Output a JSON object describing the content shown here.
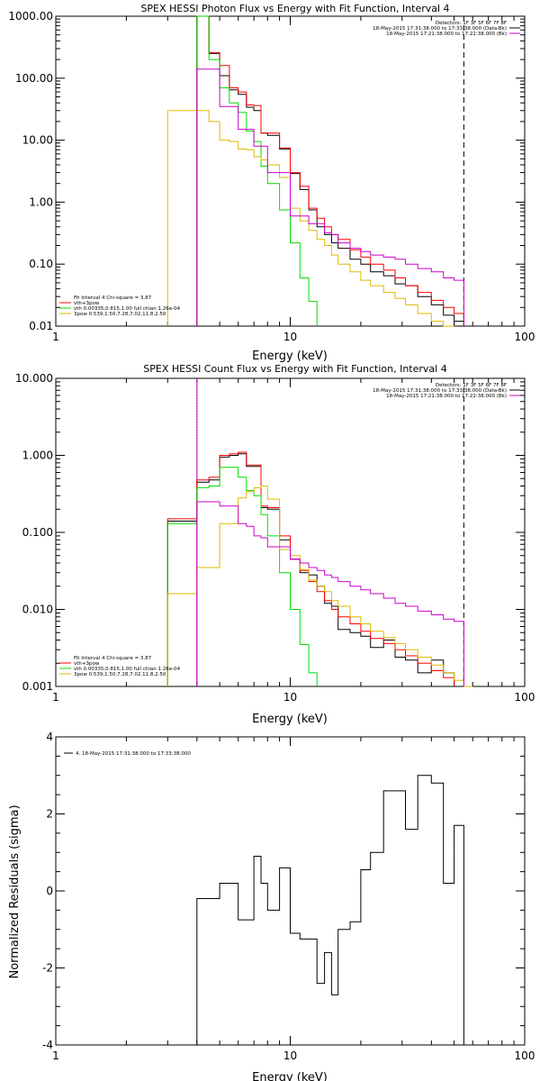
{
  "chart_data": [
    {
      "type": "line",
      "title": "SPEX HESSI Photon Flux vs Energy with Fit Function, Interval 4",
      "xlabel": "Energy (keV)",
      "ylabel": "",
      "xscale": "log",
      "yscale": "log",
      "xlim": [
        1,
        100
      ],
      "ylim": [
        0.01,
        1000
      ],
      "yticks": [
        0.01,
        0.1,
        1,
        10,
        100,
        1000
      ],
      "ytick_labels": [
        "0.01",
        "0.10",
        "1.00",
        "10.00",
        "100.00",
        "1000.00"
      ],
      "xticks": [
        1,
        10,
        100
      ],
      "xtick_labels": [
        "1",
        "10",
        "100"
      ],
      "vlines": [
        {
          "x": 4.0,
          "style": "solid",
          "color": "#cc00cc"
        },
        {
          "x": 55.0,
          "style": "dashed",
          "color": "#000000"
        }
      ],
      "legend_top_right": [
        {
          "text": "Detectors: 1F 3F 5F 6F 7F 8F",
          "color": ""
        },
        {
          "text": "18-May-2015 17:31:38.000 to 17:33:38.000 (Data-Bk)",
          "color": "#000000"
        },
        {
          "text": "18-May-2015 17:21:38.000 to 17:22:38.000 (Bk)",
          "color": "#cc00cc"
        }
      ],
      "legend_bottom_left": [
        {
          "text": "Fit Interval 4   Chi-square = 3.87",
          "color": ""
        },
        {
          "text": "vth+3pow",
          "color": "#ff0000"
        },
        {
          "text": "vth 0.00335,0.815,1.00  full chian 1.26e-04",
          "color": "#00dd00"
        },
        {
          "text": "3pow 0.539,1.50,7.28,7.02,11.8,2.50",
          "color": "#ddbb00"
        }
      ],
      "series": [
        {
          "color": "#000000",
          "edges": [
            4.0,
            4.5,
            5.0,
            5.5,
            6.0,
            6.5,
            7.0,
            7.5,
            8.0,
            9.0,
            10.0,
            11.0,
            12.0,
            13.0,
            14.0,
            15.0,
            16.0,
            18.0,
            20.0,
            22.0,
            25.0,
            28.0,
            31.0,
            35.0,
            40.0,
            45.0,
            50.0,
            55.0
          ],
          "values": [
            1000,
            250,
            110,
            65,
            55,
            34,
            30,
            13,
            12,
            7.2,
            2.9,
            1.6,
            0.75,
            0.4,
            0.3,
            0.22,
            0.18,
            0.12,
            0.1,
            0.075,
            0.065,
            0.048,
            0.045,
            0.03,
            0.022,
            0.015,
            0.012
          ]
        },
        {
          "color": "#ff0000",
          "edges": [
            4.0,
            4.5,
            5.0,
            5.5,
            6.0,
            6.5,
            7.0,
            7.5,
            8.0,
            9.0,
            10.0,
            11.0,
            12.0,
            13.0,
            14.0,
            15.0,
            16.0,
            18.0,
            20.0,
            22.0,
            25.0,
            28.0,
            31.0,
            35.0,
            40.0,
            45.0,
            50.0,
            55.0
          ],
          "values": [
            1000,
            260,
            160,
            70,
            60,
            37,
            36,
            13,
            13,
            7.5,
            3.0,
            1.8,
            0.8,
            0.55,
            0.4,
            0.3,
            0.25,
            0.17,
            0.13,
            0.1,
            0.08,
            0.06,
            0.045,
            0.035,
            0.026,
            0.02,
            0.016
          ]
        },
        {
          "color": "#00dd00",
          "edges": [
            4.0,
            4.5,
            5.0,
            5.5,
            6.0,
            6.5,
            7.0,
            7.5,
            8.0,
            9.0,
            10.0,
            11.0,
            12.0,
            13.0
          ],
          "values": [
            1000,
            200,
            70,
            40,
            28,
            14,
            9.5,
            3.8,
            2.0,
            0.75,
            0.22,
            0.06,
            0.025
          ]
        },
        {
          "color": "#ddbb00",
          "edges": [
            3.0,
            4.0,
            4.5,
            5.0,
            5.5,
            6.0,
            6.5,
            7.0,
            7.5,
            8.0,
            9.0,
            10.0,
            11.0,
            12.0,
            13.0,
            14.0,
            15.0,
            16.0,
            18.0,
            20.0,
            22.0,
            25.0,
            28.0,
            31.0,
            35.0,
            40.0,
            45.0,
            50.0
          ],
          "values": [
            30,
            30,
            20,
            10,
            9.5,
            7.2,
            7.0,
            5.4,
            4.8,
            4.0,
            2.5,
            0.8,
            0.5,
            0.35,
            0.25,
            0.2,
            0.14,
            0.1,
            0.075,
            0.055,
            0.045,
            0.035,
            0.028,
            0.022,
            0.016,
            0.012,
            0.01
          ]
        },
        {
          "color": "#cc00cc",
          "edges": [
            4.0,
            4.5,
            5.0,
            5.5,
            6.0,
            6.5,
            7.0,
            7.5,
            8.0,
            9.0,
            10.0,
            11.0,
            12.0,
            13.0,
            14.0,
            15.0,
            16.0,
            18.0,
            20.0,
            22.0,
            25.0,
            28.0,
            31.0,
            35.0,
            40.0,
            45.0,
            50.0,
            55.0
          ],
          "values": [
            140,
            140,
            35,
            35,
            15,
            15,
            8,
            8,
            3,
            3,
            0.6,
            0.6,
            0.45,
            0.45,
            0.32,
            0.3,
            0.22,
            0.18,
            0.16,
            0.14,
            0.13,
            0.12,
            0.1,
            0.085,
            0.075,
            0.06,
            0.055
          ]
        }
      ]
    },
    {
      "type": "line",
      "title": "SPEX HESSI Count Flux vs Energy with Fit Function, Interval 4",
      "xlabel": "Energy (keV)",
      "ylabel": "",
      "xscale": "log",
      "yscale": "log",
      "xlim": [
        1,
        100
      ],
      "ylim": [
        0.001,
        10
      ],
      "yticks": [
        0.001,
        0.01,
        0.1,
        1,
        10
      ],
      "ytick_labels": [
        "0.001",
        "0.010",
        "0.100",
        "1.000",
        "10.000"
      ],
      "xticks": [
        1,
        10,
        100
      ],
      "xtick_labels": [
        "1",
        "10",
        "100"
      ],
      "vlines": [
        {
          "x": 4.0,
          "style": "dotted",
          "color": "#000000"
        },
        {
          "x": 4.0,
          "style": "solid",
          "color": "#cc00cc"
        },
        {
          "x": 55.0,
          "style": "dashed",
          "color": "#000000"
        }
      ],
      "legend_top_right": [
        {
          "text": "Detectors: 1F 3F 5F 6F 7F 8F",
          "color": ""
        },
        {
          "text": "18-May-2015 17:31:38.000 to 17:33:38.000 (Data-Bk)",
          "color": "#000000"
        },
        {
          "text": "18-May-2015 17:21:38.000 to 17:22:38.000 (Bk)",
          "color": "#cc00cc"
        }
      ],
      "legend_bottom_left": [
        {
          "text": "Fit Interval 4   Chi-square = 3.87",
          "color": ""
        },
        {
          "text": "vth+3pow",
          "color": "#ff0000"
        },
        {
          "text": "vth 0.00335,0.815,1.00  full chian 1.26e-04",
          "color": "#00dd00"
        },
        {
          "text": "3pow 0.539,1.50,7.28,7.02,11.8,2.50",
          "color": "#ddbb00"
        }
      ],
      "series": [
        {
          "color": "#000000",
          "edges": [
            3.0,
            4.0,
            4.5,
            5.0,
            5.5,
            6.0,
            6.5,
            7.0,
            7.5,
            8.0,
            9.0,
            10.0,
            11.0,
            12.0,
            13.0,
            14.0,
            15.0,
            16.0,
            18.0,
            20.0,
            22.0,
            25.0,
            28.0,
            31.0,
            35.0,
            40.0,
            45.0,
            50.0,
            55.0
          ],
          "values": [
            0.14,
            0.45,
            0.48,
            0.95,
            1.0,
            1.05,
            0.72,
            0.72,
            0.21,
            0.2,
            0.08,
            0.045,
            0.03,
            0.028,
            0.02,
            0.012,
            0.011,
            0.0055,
            0.005,
            0.0045,
            0.0032,
            0.004,
            0.0024,
            0.0022,
            0.0015,
            0.0022,
            0.0015,
            0.001
          ]
        },
        {
          "color": "#ff0000",
          "edges": [
            3.0,
            4.0,
            4.5,
            5.0,
            5.5,
            6.0,
            6.5,
            7.0,
            7.5,
            8.0,
            9.0,
            10.0,
            11.0,
            12.0,
            13.0,
            14.0,
            15.0,
            16.0,
            18.0,
            20.0,
            22.0,
            25.0,
            28.0,
            31.0,
            35.0,
            40.0,
            45.0,
            50.0
          ],
          "values": [
            0.15,
            0.48,
            0.52,
            1.0,
            1.05,
            1.1,
            0.75,
            0.75,
            0.22,
            0.21,
            0.09,
            0.045,
            0.032,
            0.023,
            0.017,
            0.013,
            0.01,
            0.008,
            0.0065,
            0.0052,
            0.0042,
            0.0036,
            0.003,
            0.0025,
            0.002,
            0.0016,
            0.0013
          ]
        },
        {
          "color": "#00dd00",
          "edges": [
            3.0,
            4.0,
            4.5,
            5.0,
            5.5,
            6.0,
            6.5,
            7.0,
            7.5,
            8.0,
            9.0,
            10.0,
            11.0,
            12.0,
            13.0
          ],
          "values": [
            0.13,
            0.38,
            0.4,
            0.7,
            0.7,
            0.52,
            0.35,
            0.3,
            0.17,
            0.09,
            0.03,
            0.01,
            0.0035,
            0.0015
          ]
        },
        {
          "color": "#ddbb00",
          "edges": [
            3.0,
            4.0,
            4.5,
            5.0,
            5.5,
            6.0,
            6.5,
            7.0,
            7.5,
            8.0,
            9.0,
            10.0,
            11.0,
            12.0,
            13.0,
            14.0,
            15.0,
            16.0,
            18.0,
            20.0,
            22.0,
            25.0,
            28.0,
            31.0,
            35.0,
            40.0,
            45.0,
            50.0,
            55.0,
            60.0
          ],
          "values": [
            0.016,
            0.035,
            0.035,
            0.13,
            0.13,
            0.28,
            0.34,
            0.38,
            0.4,
            0.27,
            0.06,
            0.05,
            0.033,
            0.024,
            0.02,
            0.017,
            0.013,
            0.011,
            0.008,
            0.0065,
            0.0052,
            0.0043,
            0.0036,
            0.003,
            0.0024,
            0.0019,
            0.0015,
            0.0012,
            0.001
          ]
        },
        {
          "color": "#cc00cc",
          "edges": [
            4.0,
            4.5,
            5.0,
            5.5,
            6.0,
            6.5,
            7.0,
            7.5,
            8.0,
            9.0,
            10.0,
            11.0,
            12.0,
            13.0,
            14.0,
            15.0,
            16.0,
            18.0,
            20.0,
            22.0,
            25.0,
            28.0,
            31.0,
            35.0,
            40.0,
            45.0,
            50.0,
            55.0
          ],
          "values": [
            0.25,
            0.25,
            0.22,
            0.22,
            0.13,
            0.12,
            0.09,
            0.085,
            0.065,
            0.065,
            0.045,
            0.04,
            0.035,
            0.032,
            0.028,
            0.026,
            0.023,
            0.02,
            0.018,
            0.016,
            0.014,
            0.012,
            0.011,
            0.0095,
            0.0085,
            0.0075,
            0.007
          ]
        }
      ]
    },
    {
      "type": "line",
      "title": "",
      "xlabel": "Energy (keV)",
      "ylabel": "Normalized Residuals (sigma)",
      "xscale": "log",
      "yscale": "linear",
      "xlim": [
        1,
        100
      ],
      "ylim": [
        -4,
        4
      ],
      "yticks": [
        -4,
        -2,
        0,
        2,
        4
      ],
      "ytick_labels": [
        "-4",
        "-2",
        "0",
        "2",
        "4"
      ],
      "xticks": [
        1,
        10,
        100
      ],
      "xtick_labels": [
        "1",
        "10",
        "100"
      ],
      "legend": [
        {
          "text": "4. 18-May-2015 17:31:38.000 to 17:33:38.000",
          "color": "#000000"
        }
      ],
      "series": [
        {
          "color": "#000000",
          "edges": [
            4.0,
            4.5,
            5.0,
            5.5,
            6.0,
            6.5,
            7.0,
            7.5,
            8.0,
            9.0,
            10.0,
            11.0,
            12.0,
            13.0,
            14.0,
            15.0,
            16.0,
            18.0,
            20.0,
            22.0,
            25.0,
            28.0,
            31.0,
            35.0,
            40.0,
            45.0,
            50.0,
            55.0
          ],
          "values": [
            -0.2,
            -0.2,
            0.2,
            0.2,
            -0.75,
            -0.75,
            0.9,
            0.2,
            -0.5,
            0.6,
            -1.1,
            -1.25,
            -1.25,
            -2.4,
            -1.6,
            -2.7,
            -1.0,
            -0.8,
            0.55,
            1.0,
            2.6,
            2.6,
            1.6,
            3.0,
            2.8,
            0.2,
            1.7
          ]
        }
      ]
    }
  ]
}
